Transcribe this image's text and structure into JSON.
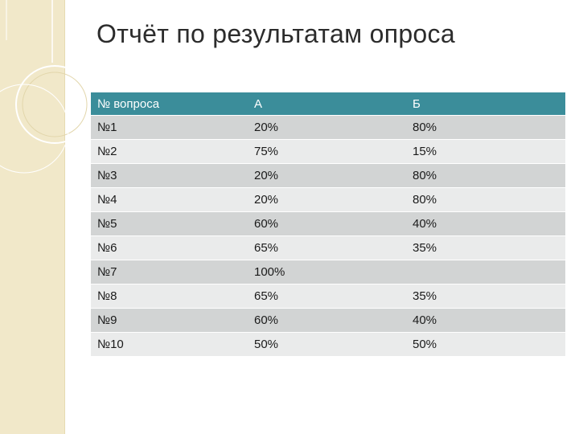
{
  "title": "Отчёт по результатам опроса",
  "colors": {
    "left_band": "#f1e8c9",
    "header_bg": "#3b8d9a",
    "row_odd": "#d2d4d4",
    "row_even": "#eaebeb"
  },
  "table": {
    "headers": [
      "№ вопроса",
      "А",
      "Б"
    ],
    "rows": [
      [
        "№1",
        "20%",
        "80%"
      ],
      [
        "№2",
        "75%",
        "15%"
      ],
      [
        "№3",
        "20%",
        "80%"
      ],
      [
        "№4",
        "20%",
        "80%"
      ],
      [
        "№5",
        "60%",
        "40%"
      ],
      [
        "№6",
        "65%",
        "35%"
      ],
      [
        "№7",
        "100%",
        ""
      ],
      [
        "№8",
        "65%",
        "35%"
      ],
      [
        "№9",
        "60%",
        "40%"
      ],
      [
        "№10",
        "50%",
        "50%"
      ]
    ]
  }
}
